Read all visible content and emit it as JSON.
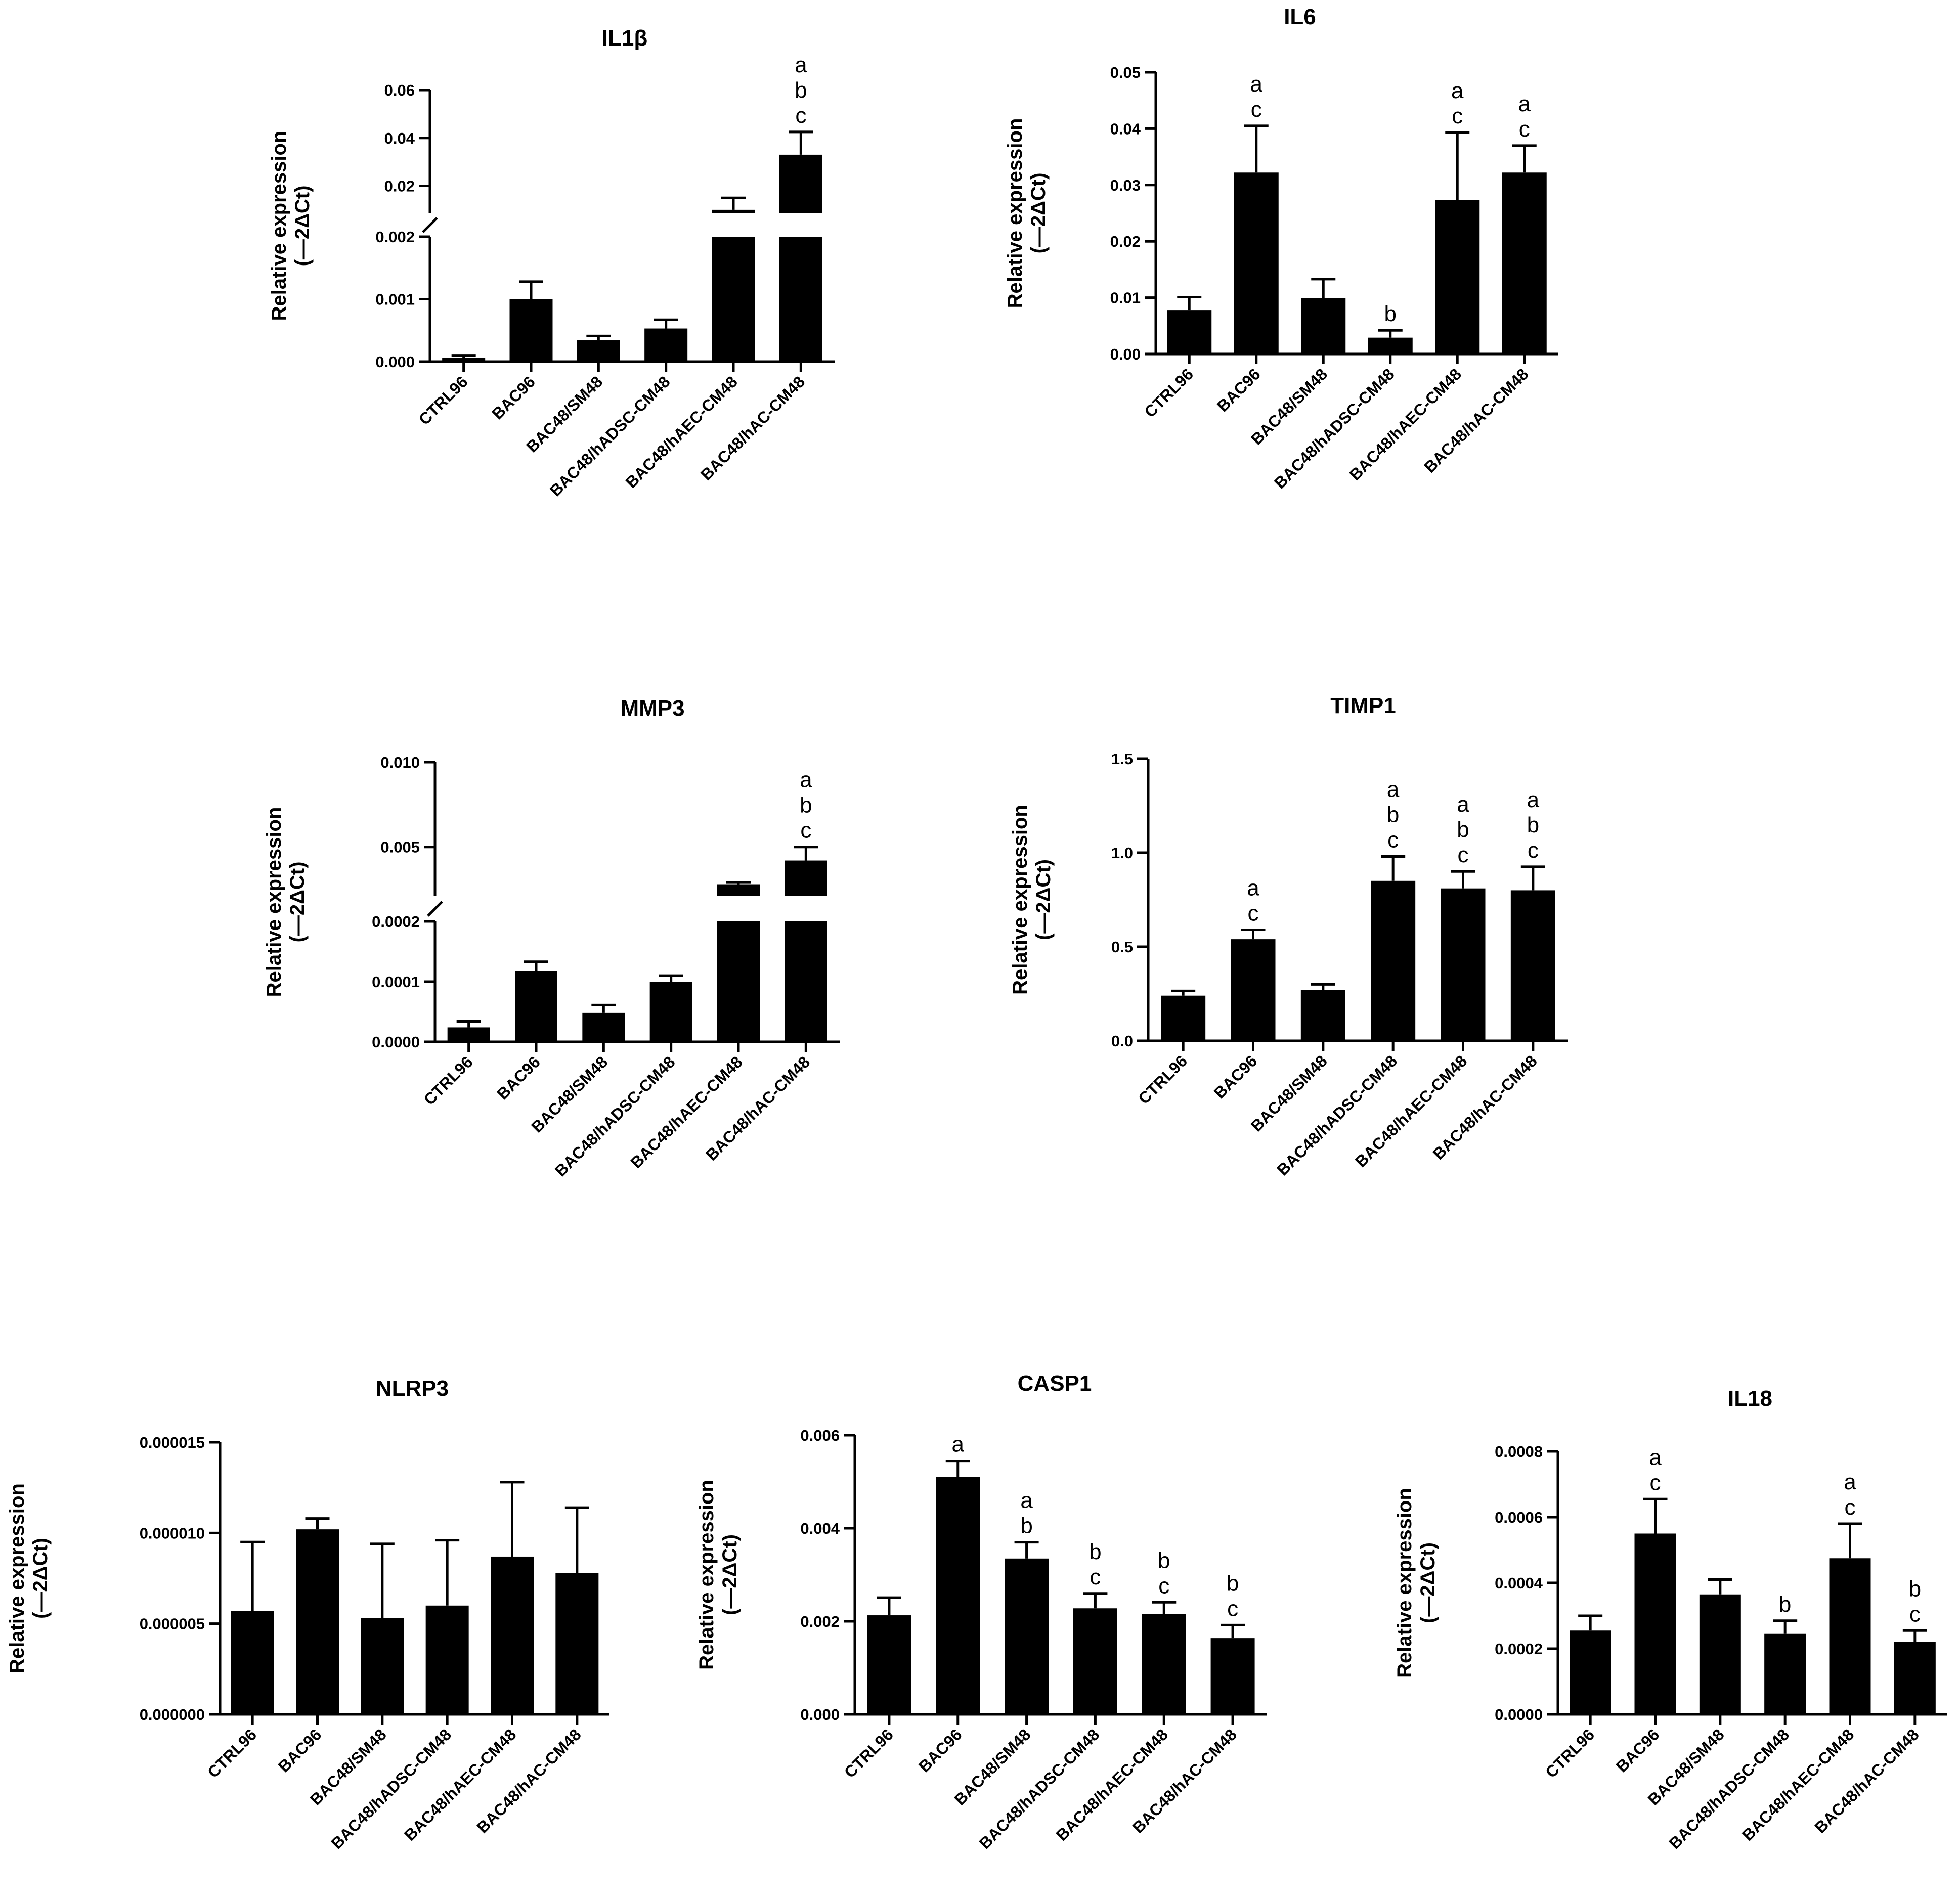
{
  "categories": [
    "CTRL96",
    "BAC96",
    "BAC48/SM48",
    "BAC48/hADSC-CM48",
    "BAC48/hAEC-CM48",
    "BAC48/hAC-CM48"
  ],
  "chart_data": [
    {
      "type": "bar",
      "title": "IL1β",
      "ylabel": [
        "Relative expression",
        "(—2ΔCt)"
      ],
      "broken_axis": true,
      "segments": [
        {
          "ylim": [
            0,
            0.002
          ],
          "ticks": [
            "0.000",
            "0.001",
            "0.002"
          ],
          "tick_values": [
            0,
            0.001,
            0.002
          ]
        },
        {
          "ylim": [
            0.0085,
            0.06
          ],
          "ticks": [
            "0.02",
            "0.04",
            "0.06"
          ],
          "tick_values": [
            0.02,
            0.04,
            0.06
          ]
        }
      ],
      "values": [
        6e-05,
        0.001,
        0.00034,
        0.00053,
        0.01,
        0.033
      ],
      "errors": [
        4e-05,
        0.00028,
        7e-05,
        0.00014,
        0.005,
        0.0095
      ],
      "annotations": [
        "",
        "",
        "",
        "",
        "",
        "a\nb\nc"
      ]
    },
    {
      "type": "bar",
      "title": "IL6",
      "ylabel": [
        "Relative expression",
        "(—2ΔCt)"
      ],
      "ylim": [
        0,
        0.05
      ],
      "ticks": [
        "0.00",
        "0.01",
        "0.02",
        "0.03",
        "0.04",
        "0.05"
      ],
      "tick_values": [
        0,
        0.01,
        0.02,
        0.03,
        0.04,
        0.05
      ],
      "values": [
        0.0078,
        0.0322,
        0.0099,
        0.0029,
        0.0273,
        0.0322
      ],
      "errors": [
        0.0023,
        0.0083,
        0.0034,
        0.0013,
        0.012,
        0.0048
      ],
      "annotations": [
        "",
        "a\nc",
        "",
        "b",
        "a\nc",
        "a\nc"
      ]
    },
    {
      "type": "bar",
      "title": "MMP3",
      "ylabel": [
        "Relative expression",
        "(—2ΔCt)"
      ],
      "broken_axis": true,
      "segments": [
        {
          "ylim": [
            0,
            0.0002
          ],
          "ticks": [
            "0.0000",
            "0.0001",
            "0.0002"
          ],
          "tick_values": [
            0,
            0.0001,
            0.0002
          ]
        },
        {
          "ylim": [
            0.0021,
            0.01
          ],
          "ticks": [
            "0.005",
            "0.010"
          ],
          "tick_values": [
            0.005,
            0.01
          ]
        }
      ],
      "values": [
        2.4e-05,
        0.000117,
        4.8e-05,
        0.0001,
        0.0028,
        0.0042
      ],
      "errors": [
        1e-05,
        1.6e-05,
        1.3e-05,
        1e-05,
        0.0001,
        0.0008
      ],
      "annotations": [
        "",
        "",
        "",
        "",
        "",
        "a\nb\nc"
      ]
    },
    {
      "type": "bar",
      "title": "TIMP1",
      "ylabel": [
        "Relative expression",
        "(—2ΔCt)"
      ],
      "ylim": [
        0,
        1.5
      ],
      "ticks": [
        "0.0",
        "0.5",
        "1.0",
        "1.5"
      ],
      "tick_values": [
        0,
        0.5,
        1.0,
        1.5
      ],
      "values": [
        0.24,
        0.54,
        0.27,
        0.85,
        0.81,
        0.8
      ],
      "errors": [
        0.025,
        0.05,
        0.03,
        0.13,
        0.09,
        0.125
      ],
      "annotations": [
        "",
        "a\nc",
        "",
        "a\nb\nc",
        "a\nb\nc",
        "a\nb\nc"
      ]
    },
    {
      "type": "bar",
      "title": "NLRP3",
      "ylabel": [
        "Relative expression",
        "(—2ΔCt)"
      ],
      "ylim": [
        0,
        1.5e-05
      ],
      "ticks": [
        "0.000000",
        "0.000005",
        "0.000010",
        "0.000015"
      ],
      "tick_values": [
        0,
        5e-06,
        1e-05,
        1.5e-05
      ],
      "values": [
        5.7e-06,
        1.02e-05,
        5.3e-06,
        6e-06,
        8.7e-06,
        7.8e-06
      ],
      "errors": [
        3.8e-06,
        6e-07,
        4.1e-06,
        3.6e-06,
        4.1e-06,
        3.6e-06
      ],
      "annotations": [
        "",
        "",
        "",
        "",
        "",
        ""
      ]
    },
    {
      "type": "bar",
      "title": "CASP1",
      "ylabel": [
        "Relative expression",
        "(—2ΔCt)"
      ],
      "ylim": [
        0,
        0.006
      ],
      "ticks": [
        "0.000",
        "0.002",
        "0.004",
        "0.006"
      ],
      "tick_values": [
        0,
        0.002,
        0.004,
        0.006
      ],
      "values": [
        0.00213,
        0.0051,
        0.00335,
        0.00228,
        0.00216,
        0.00164
      ],
      "errors": [
        0.00038,
        0.00035,
        0.00035,
        0.00032,
        0.00025,
        0.00028
      ],
      "annotations": [
        "",
        "a",
        "a\nb",
        "b\nc",
        "b\nc",
        "b\nc"
      ]
    },
    {
      "type": "bar",
      "title": "IL18",
      "ylabel": [
        "Relative expression",
        "(—2ΔCt)"
      ],
      "ylim": [
        0,
        0.0008
      ],
      "ticks": [
        "0.0000",
        "0.0002",
        "0.0004",
        "0.0006",
        "0.0008"
      ],
      "tick_values": [
        0,
        0.0002,
        0.0004,
        0.0006,
        0.0008
      ],
      "values": [
        0.000255,
        0.00055,
        0.000365,
        0.000245,
        0.000475,
        0.00022
      ],
      "errors": [
        4.5e-05,
        0.000105,
        4.5e-05,
        4e-05,
        0.000105,
        3.5e-05
      ],
      "annotations": [
        "",
        "a\nc",
        "",
        "b",
        "a\nc",
        "b\nc"
      ]
    }
  ]
}
